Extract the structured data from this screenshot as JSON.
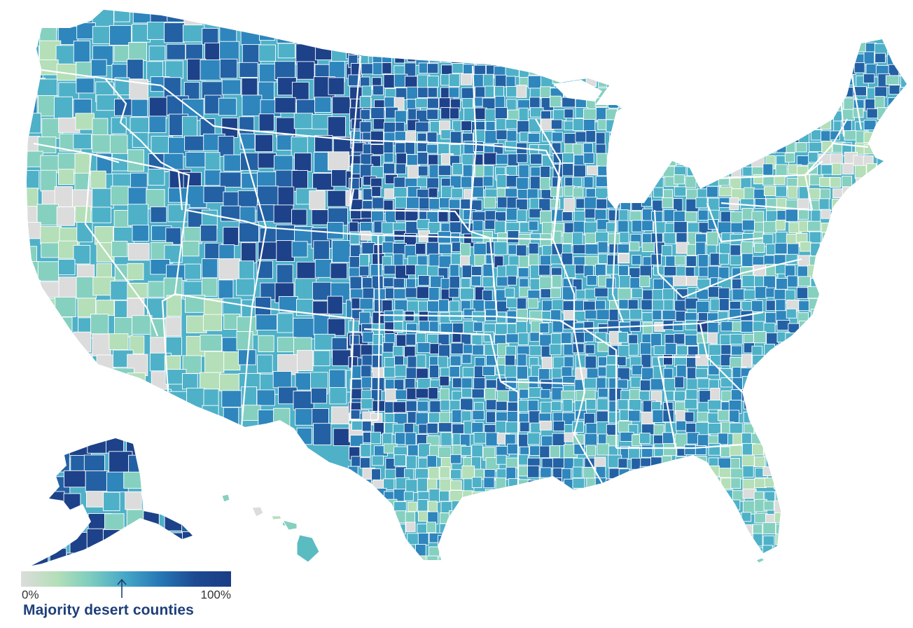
{
  "chart_data": {
    "type": "choropleth",
    "title": "",
    "geography": "United States counties (contiguous US, Alaska, Hawaii)",
    "metric": "Share of county classified as desert (0%–100%)",
    "color_scale": {
      "min_label": "0%",
      "max_label": "100%",
      "stops": [
        "#dcdcdc",
        "#b4dfb8",
        "#7dcdbf",
        "#45a6c8",
        "#2575b4",
        "#1d4a91",
        "#1a3d86"
      ],
      "threshold_marker": {
        "position_pct": 48,
        "meaning": "majority threshold"
      }
    },
    "legend": {
      "title": "Majority desert counties",
      "position": "bottom-left"
    },
    "regional_reading": [
      {
        "region": "Northern Great Plains / Montana / Dakotas",
        "level": "high"
      },
      {
        "region": "Nevada / Utah / Wyoming / Idaho interior",
        "level": "high"
      },
      {
        "region": "Kansas / Nebraska / West Texas / Oklahoma panhandle",
        "level": "high"
      },
      {
        "region": "Alaska",
        "level": "high"
      },
      {
        "region": "Midwest / Mississippi valley / Southeast",
        "level": "mixed"
      },
      {
        "region": "Pacific coast / Southern California / Arizona",
        "level": "low"
      },
      {
        "region": "Northeast corridor / Florida peninsula",
        "level": "low"
      },
      {
        "region": "Hawaii",
        "level": "low-medium"
      }
    ]
  },
  "legend": {
    "min_label": "0%",
    "max_label": "100%",
    "title": "Majority desert counties",
    "arrow_icon": "up-arrow-icon"
  },
  "colors": {
    "c0": "#dcdcdc",
    "c1": "#b4dfb8",
    "c2": "#86d0c0",
    "c3": "#4eb1c8",
    "c4": "#2e86bd",
    "c5": "#2361a4",
    "c6": "#1d428a",
    "border": "#ffffff",
    "legend_title": "#1f3f7a"
  }
}
